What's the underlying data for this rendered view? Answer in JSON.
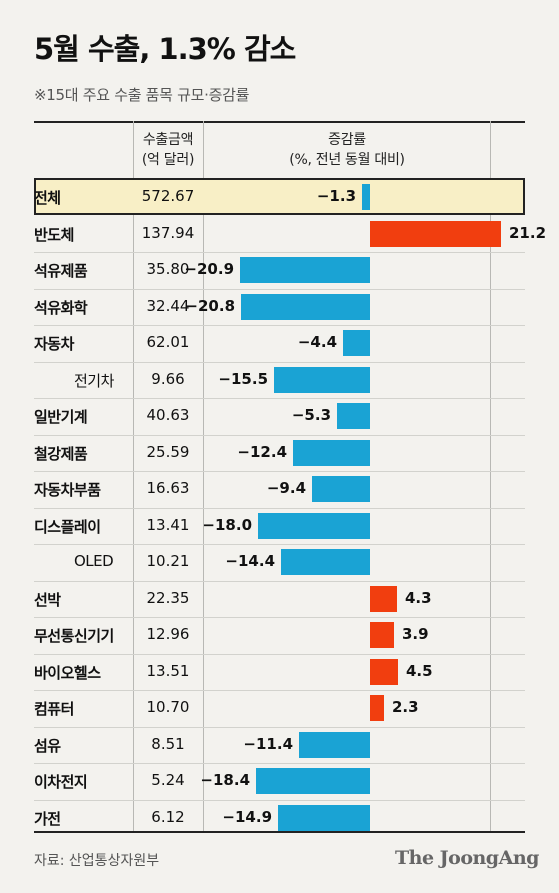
{
  "header": {
    "title": "5월 수출, 1.3% 감소",
    "subtitle": "※15대 주요 수출 품목 규모·증감률"
  },
  "table": {
    "col_amount": [
      "수출금액",
      "(억 달러)"
    ],
    "col_change": [
      "증감률",
      "(%, 전년 동월 대비)"
    ]
  },
  "footer": {
    "source": "자료: 산업통상자원부",
    "logo": "The JoongAng"
  },
  "colors": {
    "negative": "#1aa3d4",
    "positive": "#f13e0f",
    "total_highlight": "#f8efc6"
  },
  "chart_data": {
    "type": "bar",
    "orientation": "horizontal",
    "title": "5월 수출, 1.3% 감소",
    "subtitle": "※15대 주요 수출 품목 규모·증감률",
    "categories": [
      "전체",
      "반도체",
      "석유제품",
      "석유화학",
      "자동차",
      "전기차",
      "일반기계",
      "철강제품",
      "자동차부품",
      "디스플레이",
      "OLED",
      "선박",
      "무선통신기기",
      "바이오헬스",
      "컴퓨터",
      "섬유",
      "이차전지",
      "가전"
    ],
    "sub_item": [
      false,
      false,
      false,
      false,
      false,
      true,
      false,
      false,
      false,
      false,
      true,
      false,
      false,
      false,
      false,
      false,
      false,
      false
    ],
    "export_amount": [
      "572.67",
      "137.94",
      "35.80",
      "32.44",
      "62.01",
      "9.66",
      "40.63",
      "25.59",
      "16.63",
      "13.41",
      "10.21",
      "22.35",
      "12.96",
      "13.51",
      "10.70",
      "8.51",
      "5.24",
      "6.12"
    ],
    "change_pct": [
      -1.3,
      21.2,
      -20.9,
      -20.8,
      -4.4,
      -15.5,
      -5.3,
      -12.4,
      -9.4,
      -18.0,
      -14.4,
      4.3,
      3.9,
      4.5,
      2.3,
      -11.4,
      -18.4,
      -14.9
    ],
    "change_labels": [
      "-1.3",
      "21.2",
      "-20.9",
      "-20.8",
      "-4.4",
      "-15.5",
      "-5.3",
      "-12.4",
      "-9.4",
      "-18.0",
      "-14.4",
      "4.3",
      "3.9",
      "4.5",
      "2.3",
      "-11.4",
      "-18.4",
      "-14.9"
    ],
    "x_range": [
      -21,
      21.2
    ],
    "grid": false
  }
}
